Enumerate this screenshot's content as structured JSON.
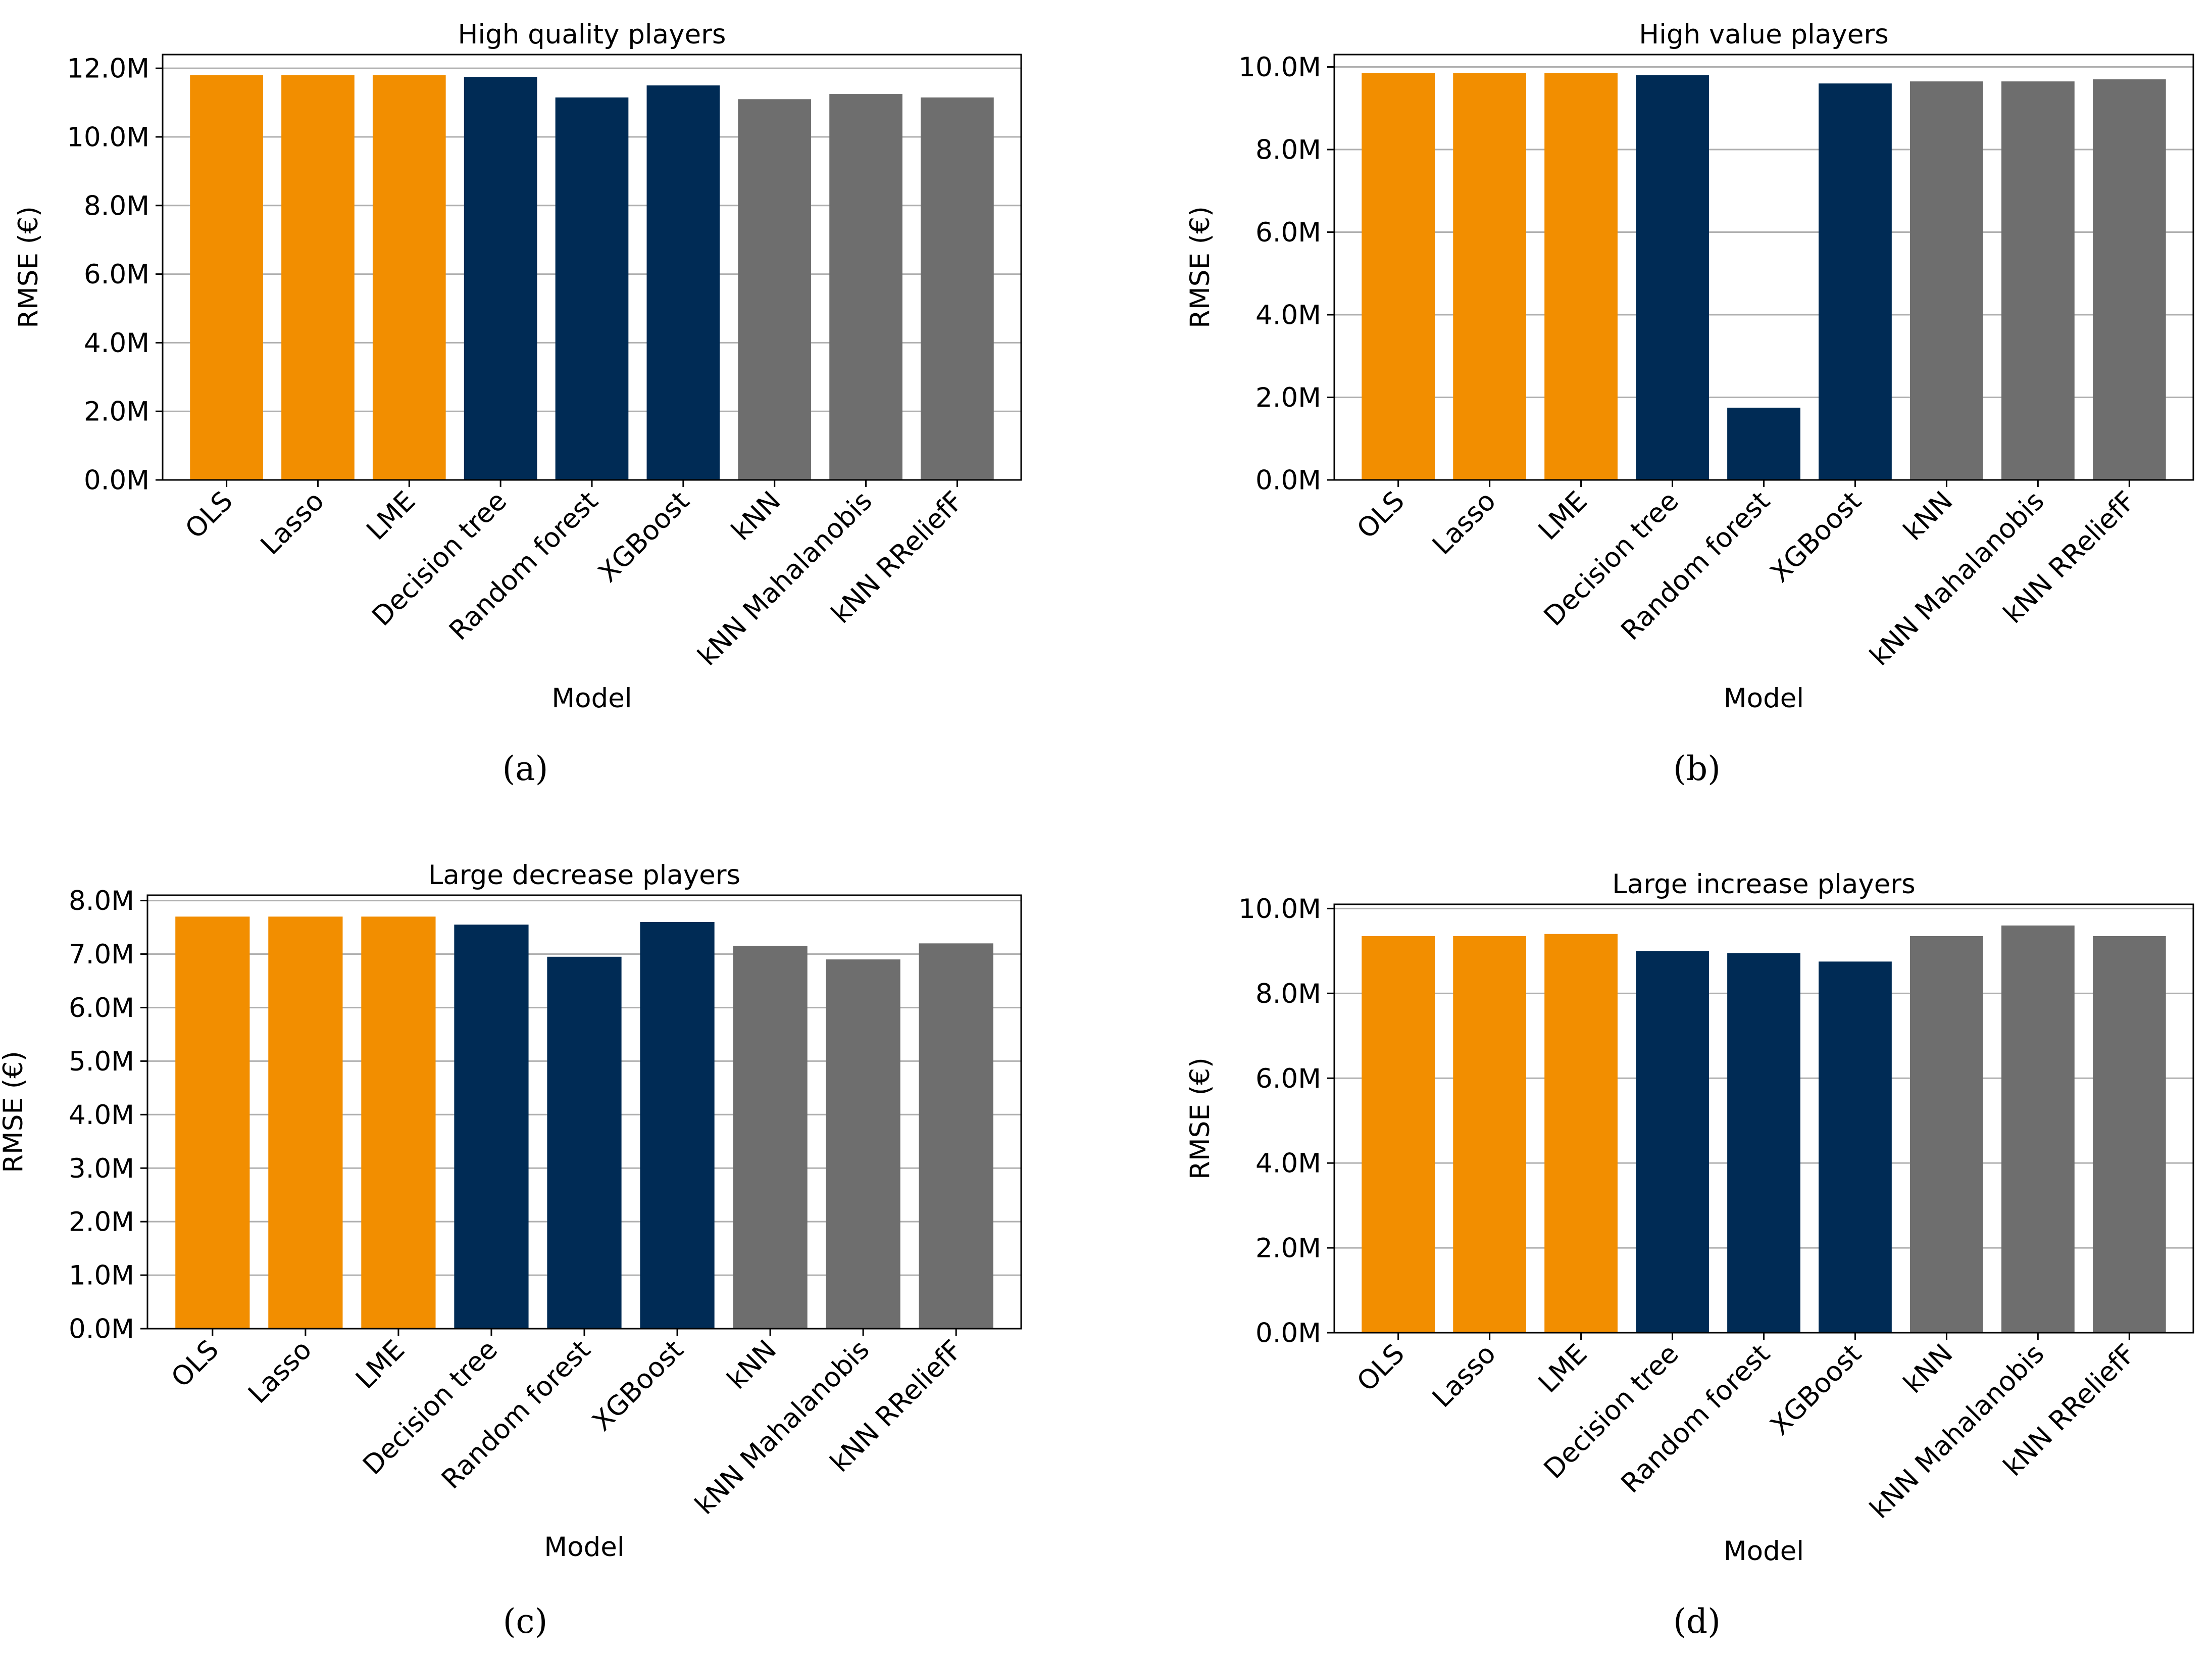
{
  "colors": {
    "linear": "#F28E00",
    "tree": "#002B55",
    "knn": "#6E6E6E",
    "grid": "#B0B0B0",
    "axis": "#000000"
  },
  "chart_data": [
    {
      "type": "bar",
      "title": "High quality players",
      "xlabel": "Model",
      "ylabel": "RMSE (€)",
      "caption": "(a)",
      "categories": [
        "OLS",
        "Lasso",
        "LME",
        "Decision tree",
        "Random forest",
        "XGBoost",
        "kNN",
        "kNN Mahalanobis",
        "kNN RReliefF"
      ],
      "values": [
        11.8,
        11.8,
        11.8,
        11.75,
        11.15,
        11.5,
        11.1,
        11.25,
        11.15
      ],
      "groups": [
        "linear",
        "linear",
        "linear",
        "tree",
        "tree",
        "tree",
        "knn",
        "knn",
        "knn"
      ],
      "ylim": [
        0,
        12.4
      ],
      "yticks": [
        0,
        2,
        4,
        6,
        8,
        10,
        12
      ],
      "ytick_labels": [
        "0.0M",
        "2.0M",
        "4.0M",
        "6.0M",
        "8.0M",
        "10.0M",
        "12.0M"
      ],
      "grid": true
    },
    {
      "type": "bar",
      "title": "High value players",
      "xlabel": "Model",
      "ylabel": "RMSE (€)",
      "caption": "(b)",
      "categories": [
        "OLS",
        "Lasso",
        "LME",
        "Decision tree",
        "Random forest",
        "XGBoost",
        "kNN",
        "kNN Mahalanobis",
        "kNN RReliefF"
      ],
      "values": [
        9.85,
        9.85,
        9.85,
        9.8,
        1.75,
        9.6,
        9.65,
        9.65,
        9.7
      ],
      "groups": [
        "linear",
        "linear",
        "linear",
        "tree",
        "tree",
        "tree",
        "knn",
        "knn",
        "knn"
      ],
      "ylim": [
        0,
        10.3
      ],
      "yticks": [
        0,
        2,
        4,
        6,
        8,
        10
      ],
      "ytick_labels": [
        "0.0M",
        "2.0M",
        "4.0M",
        "6.0M",
        "8.0M",
        "10.0M"
      ],
      "grid": true
    },
    {
      "type": "bar",
      "title": "Large decrease players",
      "xlabel": "Model",
      "ylabel": "RMSE (€)",
      "caption": "(c)",
      "categories": [
        "OLS",
        "Lasso",
        "LME",
        "Decision tree",
        "Random forest",
        "XGBoost",
        "kNN",
        "kNN Mahalanobis",
        "kNN RReliefF"
      ],
      "values": [
        7.7,
        7.7,
        7.7,
        7.55,
        6.95,
        7.6,
        7.15,
        6.9,
        7.2
      ],
      "groups": [
        "linear",
        "linear",
        "linear",
        "tree",
        "tree",
        "tree",
        "knn",
        "knn",
        "knn"
      ],
      "ylim": [
        0,
        8.1
      ],
      "yticks": [
        0,
        1,
        2,
        3,
        4,
        5,
        6,
        7,
        8
      ],
      "ytick_labels": [
        "0.0M",
        "1.0M",
        "2.0M",
        "3.0M",
        "4.0M",
        "5.0M",
        "6.0M",
        "7.0M",
        "8.0M"
      ],
      "grid": true
    },
    {
      "type": "bar",
      "title": "Large increase players",
      "xlabel": "Model",
      "ylabel": "RMSE (€)",
      "caption": "(d)",
      "categories": [
        "OLS",
        "Lasso",
        "LME",
        "Decision tree",
        "Random forest",
        "XGBoost",
        "kNN",
        "kNN Mahalanobis",
        "kNN RReliefF"
      ],
      "values": [
        9.35,
        9.35,
        9.4,
        9.0,
        8.95,
        8.75,
        9.35,
        9.6,
        9.35
      ],
      "groups": [
        "linear",
        "linear",
        "linear",
        "tree",
        "tree",
        "tree",
        "knn",
        "knn",
        "knn"
      ],
      "ylim": [
        0,
        10.1
      ],
      "yticks": [
        0,
        2,
        4,
        6,
        8,
        10
      ],
      "ytick_labels": [
        "0.0M",
        "2.0M",
        "4.0M",
        "6.0M",
        "8.0M",
        "10.0M"
      ],
      "grid": true
    }
  ]
}
